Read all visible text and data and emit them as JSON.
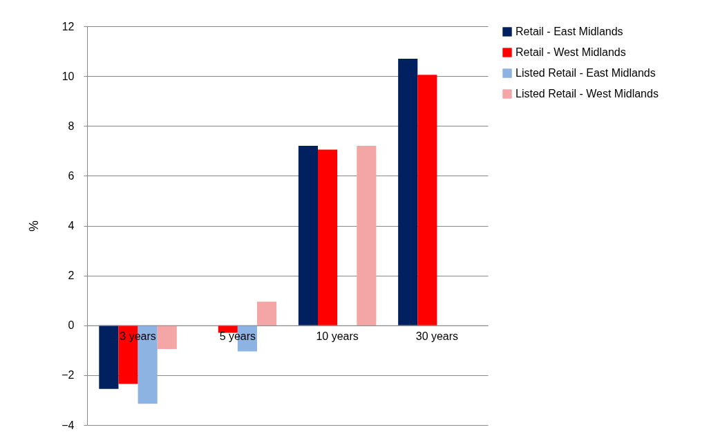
{
  "chart_data": {
    "type": "bar",
    "ylabel": "%",
    "categories": [
      "3 years",
      "5 years",
      "10 years",
      "30 years"
    ],
    "series": [
      {
        "name": "Retail - East Midlands",
        "color": "#002060",
        "values": [
          -2.55,
          null,
          7.2,
          10.7
        ]
      },
      {
        "name": "Retail - West Midlands",
        "color": "#ff0000",
        "values": [
          -2.35,
          -0.3,
          7.05,
          10.05
        ]
      },
      {
        "name": "Listed Retail - East Midlands",
        "color": "#8db3e2",
        "values": [
          -3.15,
          -1.05,
          null,
          null
        ]
      },
      {
        "name": "Listed Retail - West Midlands",
        "color": "#f4a6a6",
        "values": [
          -0.95,
          0.95,
          7.2,
          null
        ]
      }
    ],
    "ylim": [
      -4,
      12
    ],
    "yticks": [
      -4,
      -2,
      0,
      2,
      4,
      6,
      8,
      10,
      12
    ],
    "grid": "y",
    "legend": "right"
  }
}
